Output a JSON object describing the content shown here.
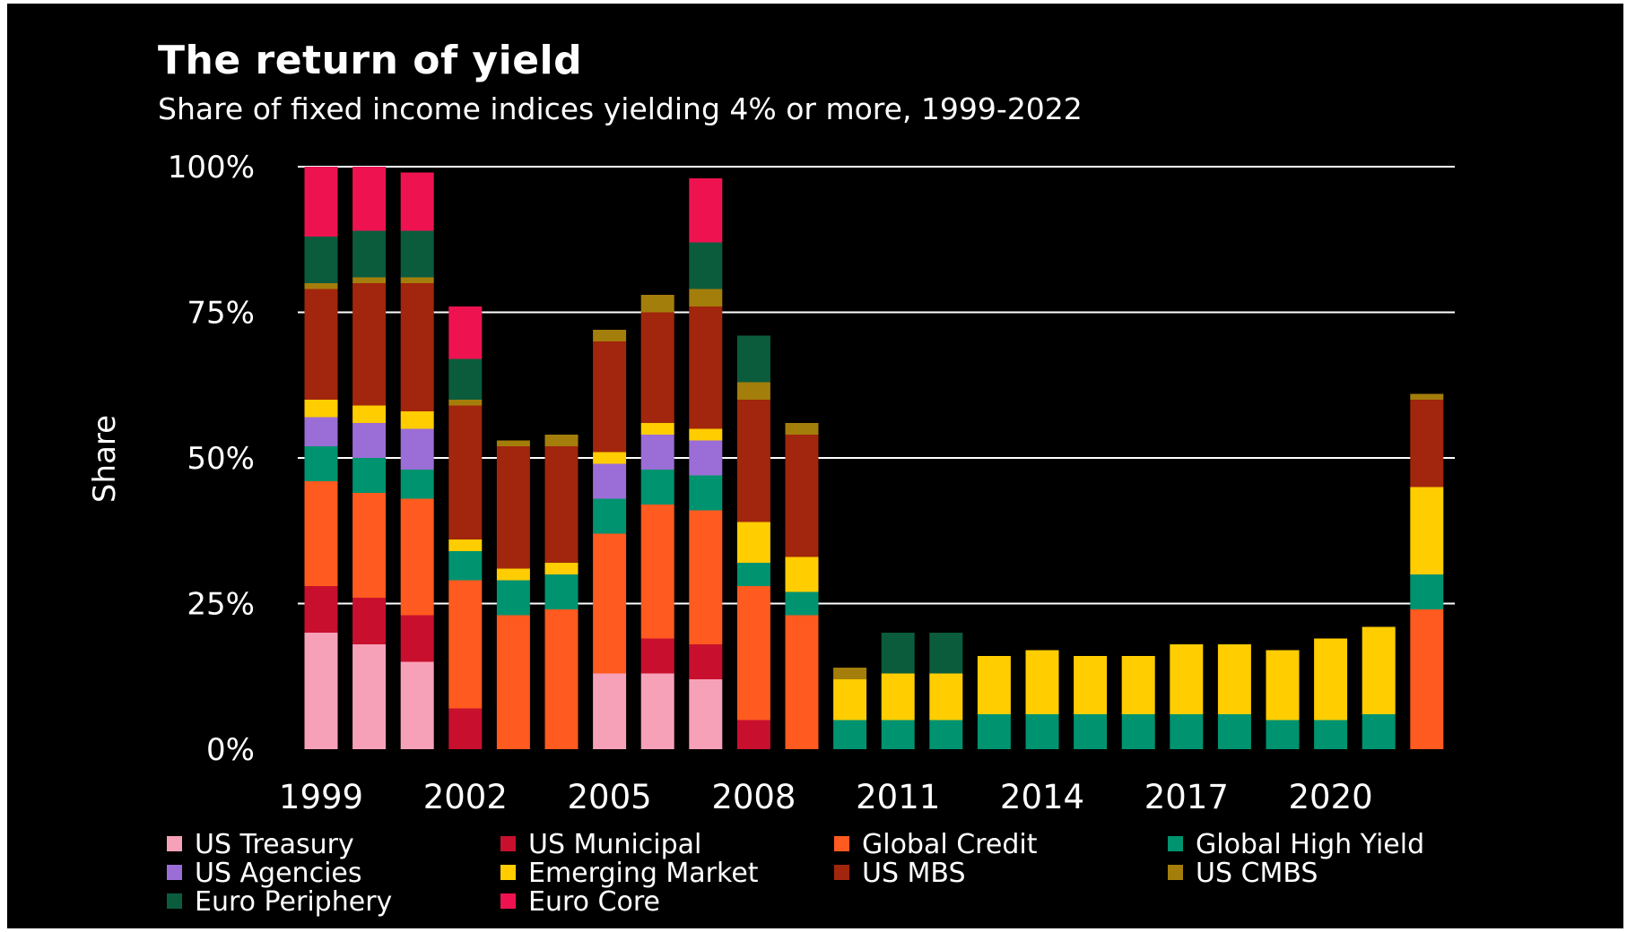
{
  "chart_data": {
    "type": "bar",
    "stacked": true,
    "title": "The return of yield",
    "subtitle": "Share of fixed income indices yielding 4% or more, 1999-2022",
    "ylabel": "Share",
    "xlabel": "",
    "ylim": [
      0,
      100
    ],
    "yticks": [
      "0%",
      "25%",
      "50%",
      "75%",
      "100%"
    ],
    "ytick_values": [
      0,
      25,
      50,
      75,
      100
    ],
    "xticks": [
      "1999",
      "2002",
      "2005",
      "2008",
      "2011",
      "2014",
      "2017",
      "2020"
    ],
    "grid": true,
    "legend_position": "bottom",
    "background": "#000000",
    "categories": [
      1999,
      2000,
      2001,
      2002,
      2003,
      2004,
      2005,
      2006,
      2007,
      2008,
      2009,
      2010,
      2011,
      2012,
      2013,
      2014,
      2015,
      2016,
      2017,
      2018,
      2019,
      2020,
      2021,
      2022
    ],
    "series": [
      {
        "name": "US Treasury",
        "color": "#f7a1b8",
        "values": [
          20,
          18,
          15,
          0,
          0,
          0,
          13,
          13,
          12,
          0,
          0,
          0,
          0,
          0,
          0,
          0,
          0,
          0,
          0,
          0,
          0,
          0,
          0,
          0
        ]
      },
      {
        "name": "US Municipal",
        "color": "#c8102e",
        "values": [
          8,
          8,
          8,
          7,
          0,
          0,
          0,
          6,
          6,
          5,
          0,
          0,
          0,
          0,
          0,
          0,
          0,
          0,
          0,
          0,
          0,
          0,
          0,
          0
        ]
      },
      {
        "name": "Global Credit",
        "color": "#ff5a1f",
        "values": [
          18,
          18,
          20,
          22,
          23,
          24,
          24,
          23,
          23,
          23,
          23,
          0,
          0,
          0,
          0,
          0,
          0,
          0,
          0,
          0,
          0,
          0,
          0,
          24
        ]
      },
      {
        "name": "Global High Yield",
        "color": "#00936f",
        "values": [
          6,
          6,
          5,
          5,
          6,
          6,
          6,
          6,
          6,
          4,
          4,
          5,
          5,
          5,
          6,
          6,
          6,
          6,
          6,
          6,
          5,
          5,
          6,
          6
        ]
      },
      {
        "name": "US Agencies",
        "color": "#9b6dd6",
        "values": [
          5,
          6,
          7,
          0,
          0,
          0,
          6,
          6,
          6,
          0,
          0,
          0,
          0,
          0,
          0,
          0,
          0,
          0,
          0,
          0,
          0,
          0,
          0,
          0
        ]
      },
      {
        "name": "Emerging Market",
        "color": "#ffcd00",
        "values": [
          3,
          3,
          3,
          2,
          2,
          2,
          2,
          2,
          2,
          7,
          6,
          7,
          8,
          8,
          10,
          11,
          10,
          10,
          12,
          12,
          12,
          14,
          15,
          15
        ]
      },
      {
        "name": "US MBS",
        "color": "#a1260d",
        "values": [
          19,
          21,
          22,
          23,
          21,
          20,
          19,
          19,
          21,
          21,
          21,
          0,
          0,
          0,
          0,
          0,
          0,
          0,
          0,
          0,
          0,
          0,
          0,
          15
        ]
      },
      {
        "name": "US CMBS",
        "color": "#a47e0b",
        "values": [
          1,
          1,
          1,
          1,
          1,
          2,
          2,
          3,
          3,
          3,
          2,
          2,
          0,
          0,
          0,
          0,
          0,
          0,
          0,
          0,
          0,
          0,
          0,
          1
        ]
      },
      {
        "name": "Euro Periphery",
        "color": "#0b5c3d",
        "values": [
          8,
          8,
          8,
          7,
          0,
          0,
          0,
          0,
          8,
          8,
          0,
          0,
          7,
          7,
          0,
          0,
          0,
          0,
          0,
          0,
          0,
          0,
          0,
          0
        ]
      },
      {
        "name": "Euro Core",
        "color": "#ee1350",
        "values": [
          12,
          11,
          10,
          9,
          0,
          0,
          0,
          0,
          11,
          0,
          0,
          0,
          0,
          0,
          0,
          0,
          0,
          0,
          0,
          0,
          0,
          0,
          0,
          0
        ]
      }
    ]
  }
}
